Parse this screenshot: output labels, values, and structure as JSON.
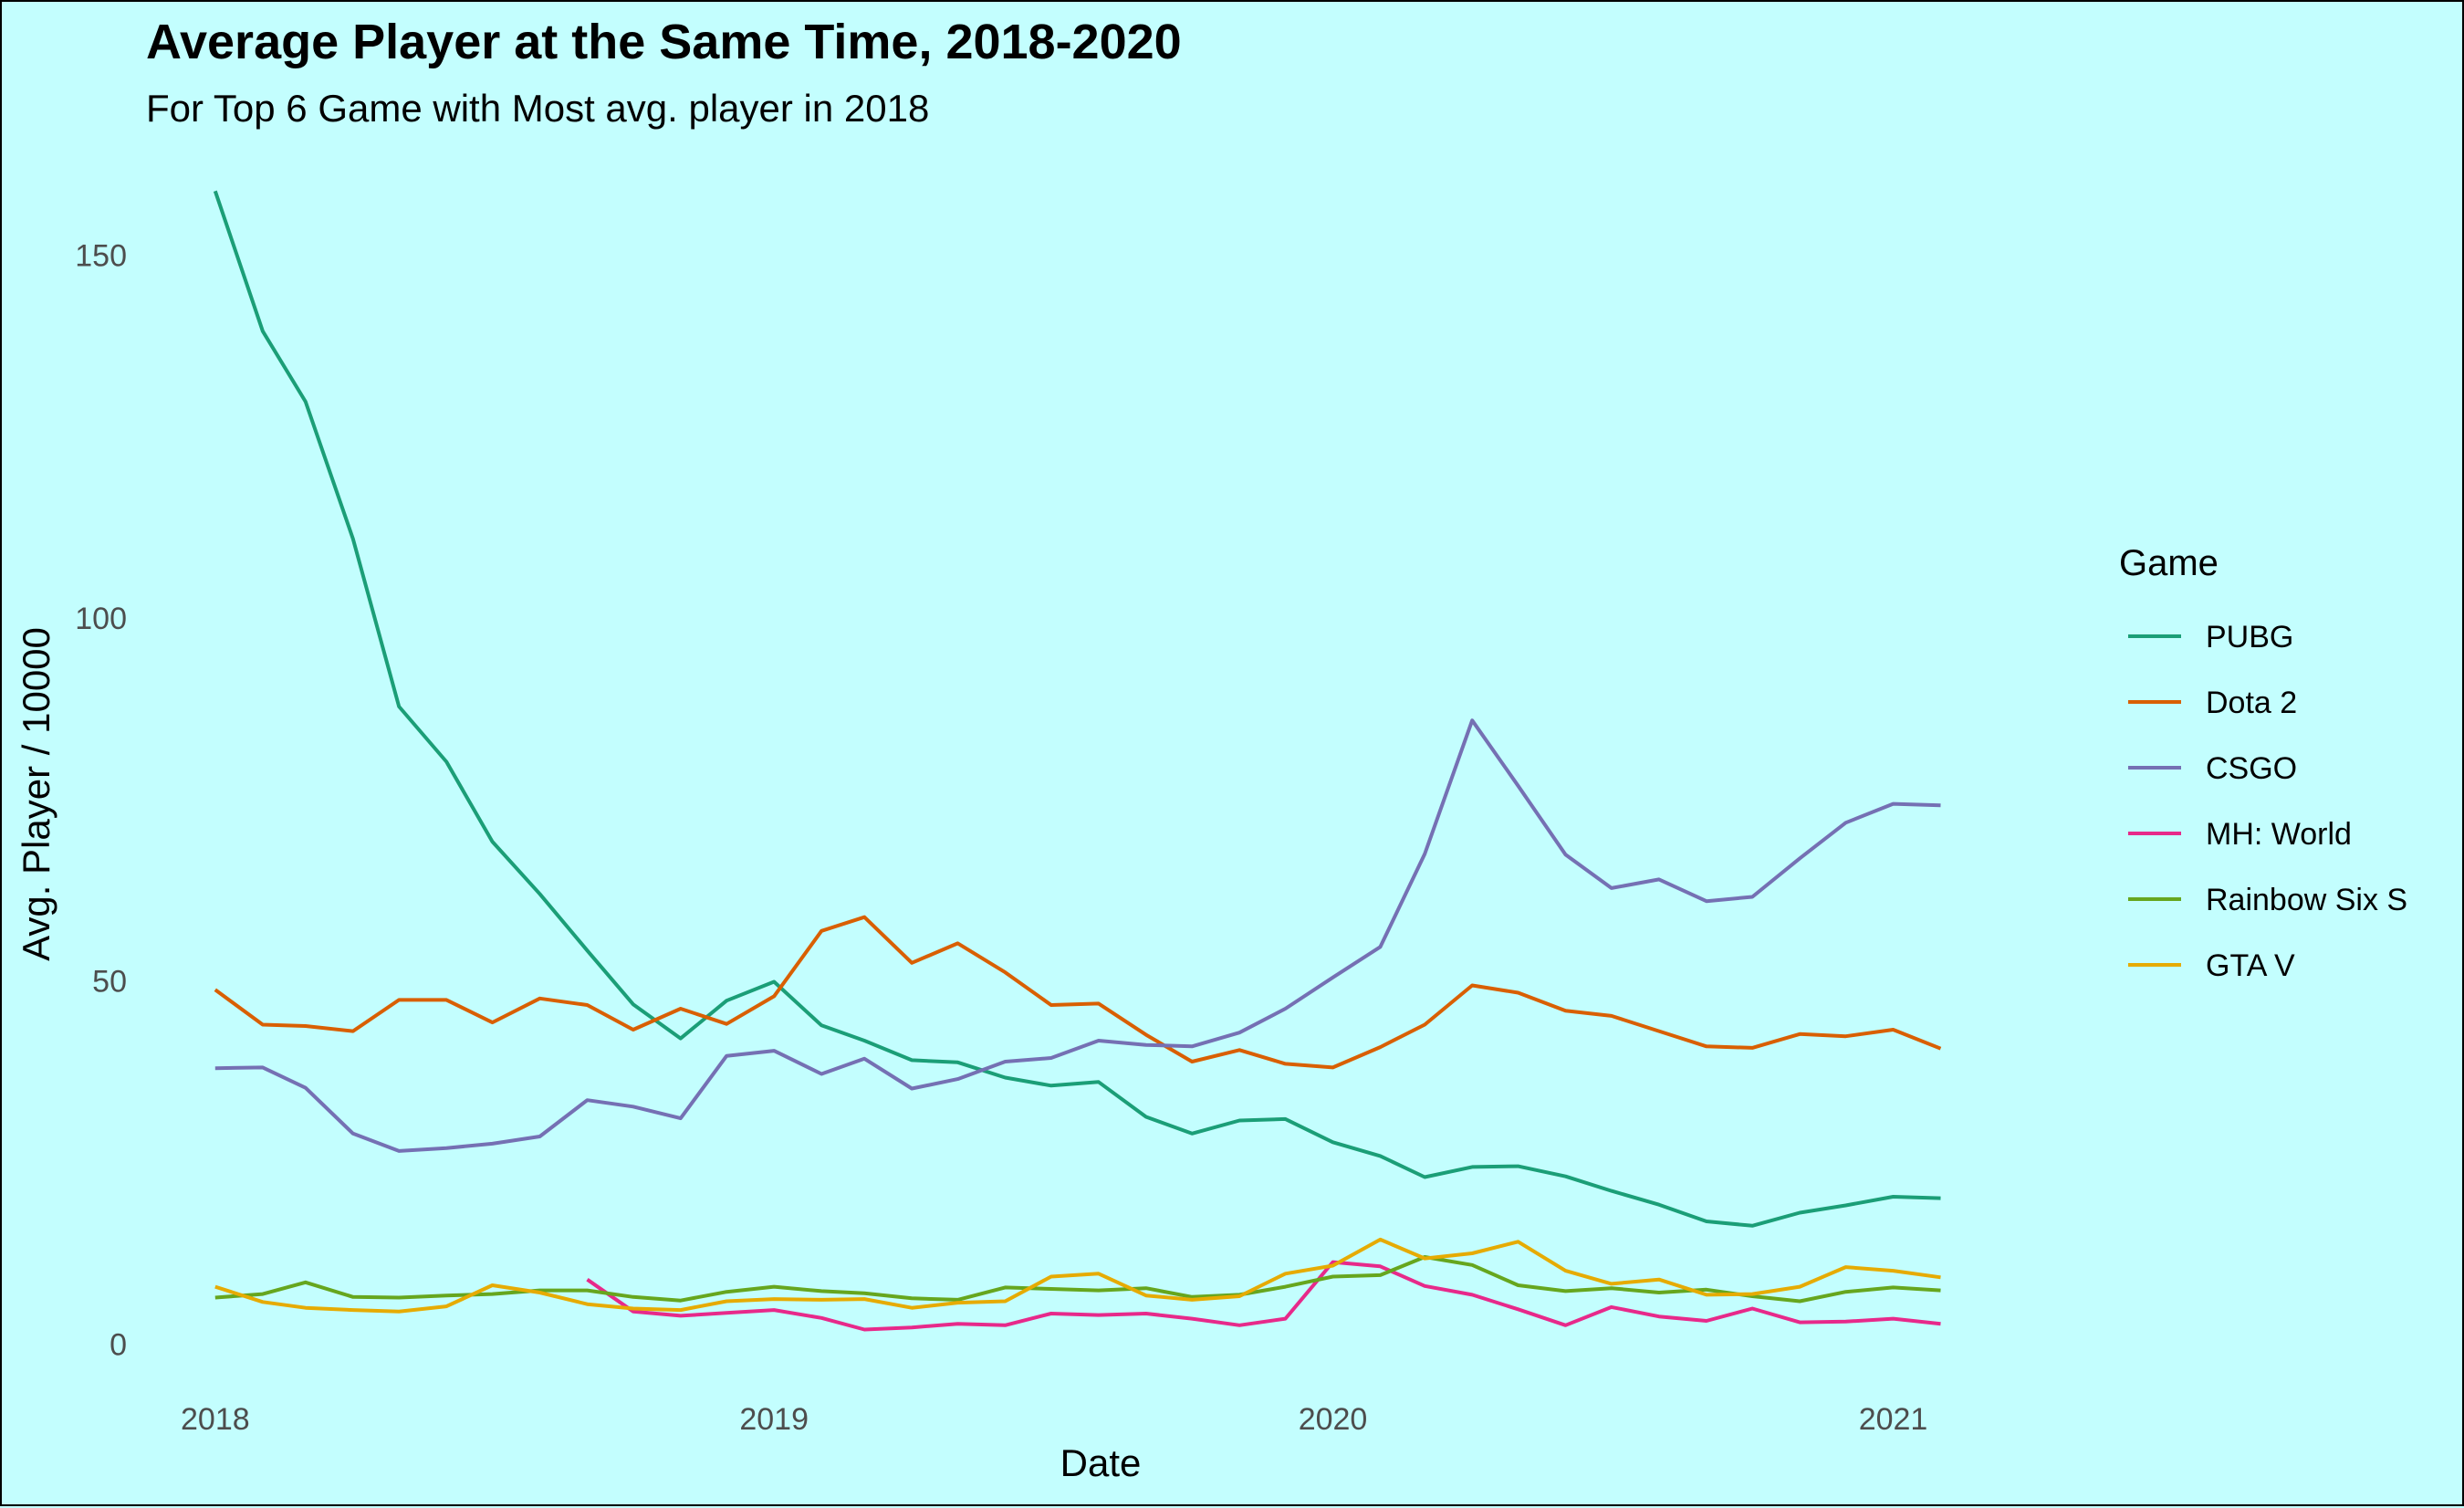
{
  "chart_data": {
    "type": "line",
    "title": "Average Player at the Same Time, 2018-2020",
    "subtitle": "For Top 6 Game with Most avg. player in 2018",
    "xlabel": "Date",
    "ylabel": "Avg. Player / 10000",
    "xlim": [
      "2017-11-15",
      "2021-03-15"
    ],
    "ylim": [
      -10,
      166
    ],
    "x_ticks": [
      "2018",
      "2019",
      "2020",
      "2021"
    ],
    "y_ticks": [
      0,
      50,
      100,
      150
    ],
    "grid": false,
    "legend": {
      "title": "Game",
      "position": "right"
    },
    "colors": {
      "PUBG": "#1b9e77",
      "Dota 2": "#d95f02",
      "CSGO": "#7570b3",
      "MH: World": "#e7298a",
      "Rainbow Six S": "#66a61e",
      "GTA V": "#e6ab02"
    },
    "x": [
      "2018-01",
      "2018-02",
      "2018-03",
      "2018-04",
      "2018-05",
      "2018-06",
      "2018-07",
      "2018-08",
      "2018-09",
      "2018-10",
      "2018-11",
      "2018-12",
      "2019-01",
      "2019-02",
      "2019-03",
      "2019-04",
      "2019-05",
      "2019-06",
      "2019-07",
      "2019-08",
      "2019-09",
      "2019-10",
      "2019-11",
      "2019-12",
      "2020-01",
      "2020-02",
      "2020-03",
      "2020-04",
      "2020-05",
      "2020-06",
      "2020-07",
      "2020-08",
      "2020-09",
      "2020-10",
      "2020-11",
      "2020-12",
      "2021-01",
      "2021-02"
    ],
    "series": [
      {
        "name": "PUBG",
        "values": [
          158.8,
          139.5,
          129.8,
          110.9,
          87.8,
          80.2,
          69.2,
          62.0,
          54.2,
          46.8,
          42.1,
          47.3,
          49.9,
          43.9,
          41.8,
          39.1,
          38.8,
          36.7,
          35.6,
          36.1,
          31.3,
          29.0,
          30.8,
          31.0,
          27.8,
          25.9,
          23.0,
          24.4,
          24.5,
          23.1,
          21.1,
          19.2,
          16.9,
          16.3,
          18.1,
          19.1,
          20.3,
          20.1
        ]
      },
      {
        "name": "Dota 2",
        "values": [
          48.8,
          44.0,
          43.8,
          43.1,
          47.4,
          47.4,
          44.3,
          47.6,
          46.7,
          43.3,
          46.2,
          44.1,
          47.9,
          56.9,
          58.8,
          52.5,
          55.2,
          51.2,
          46.7,
          46.9,
          42.6,
          38.9,
          40.5,
          38.6,
          38.1,
          40.9,
          44.0,
          49.4,
          48.4,
          45.9,
          45.2,
          43.1,
          41.0,
          40.8,
          42.7,
          42.4,
          43.3,
          40.7
        ]
      },
      {
        "name": "CSGO",
        "values": [
          38.0,
          38.1,
          35.3,
          29.0,
          26.6,
          27.0,
          27.6,
          28.6,
          33.6,
          32.7,
          31.1,
          39.7,
          40.4,
          37.2,
          39.3,
          35.2,
          36.5,
          38.9,
          39.4,
          41.8,
          41.2,
          41.0,
          42.9,
          46.2,
          50.5,
          54.7,
          67.5,
          85.9,
          76.9,
          67.4,
          62.8,
          64.0,
          61.0,
          61.6,
          66.9,
          71.8,
          74.4,
          74.2
        ]
      },
      {
        "name": "MH: World",
        "values": [
          null,
          null,
          null,
          null,
          null,
          null,
          null,
          null,
          8.9,
          4.5,
          3.9,
          4.3,
          4.7,
          3.6,
          2.0,
          2.3,
          2.8,
          2.6,
          4.2,
          4.0,
          4.2,
          3.5,
          2.6,
          3.5,
          11.3,
          10.7,
          8.0,
          6.8,
          4.8,
          2.6,
          5.1,
          3.8,
          3.2,
          4.9,
          3.0,
          3.1,
          3.5,
          2.8
        ]
      },
      {
        "name": "Rainbow Six S",
        "values": [
          6.4,
          6.9,
          8.5,
          6.5,
          6.4,
          6.7,
          6.9,
          7.4,
          7.4,
          6.5,
          6.0,
          7.2,
          7.9,
          7.3,
          7.0,
          6.3,
          6.1,
          7.8,
          7.6,
          7.4,
          7.7,
          6.5,
          6.8,
          7.9,
          9.3,
          9.5,
          12.0,
          10.9,
          8.1,
          7.3,
          7.7,
          7.1,
          7.5,
          6.6,
          5.9,
          7.2,
          7.8,
          7.4
        ]
      },
      {
        "name": "GTA V",
        "values": [
          7.9,
          5.8,
          5.0,
          4.7,
          4.5,
          5.2,
          8.1,
          7.1,
          5.5,
          4.9,
          4.7,
          5.9,
          6.2,
          6.1,
          6.2,
          5.0,
          5.7,
          5.9,
          9.3,
          9.7,
          6.7,
          6.1,
          6.6,
          9.7,
          10.8,
          14.4,
          11.8,
          12.5,
          14.1,
          10.1,
          8.3,
          8.9,
          6.8,
          6.9,
          7.9,
          10.6,
          10.1,
          9.2
        ]
      }
    ]
  }
}
